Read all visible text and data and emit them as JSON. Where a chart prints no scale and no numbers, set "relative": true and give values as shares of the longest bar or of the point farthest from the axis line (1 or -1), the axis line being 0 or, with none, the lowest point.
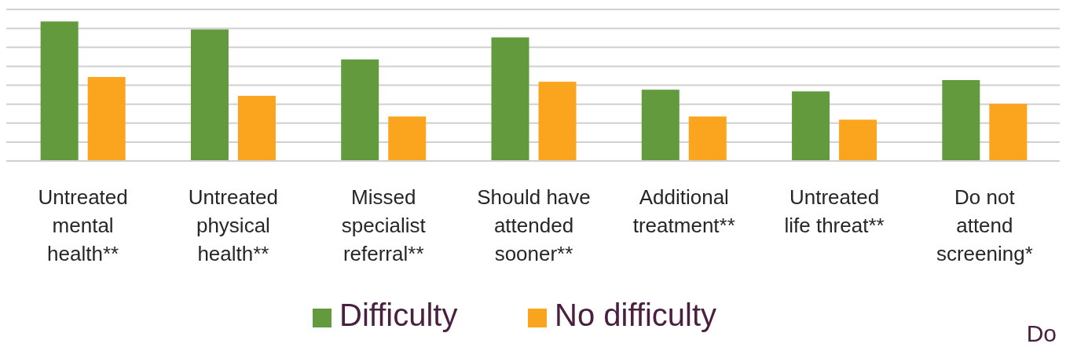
{
  "chart_data": {
    "type": "bar",
    "relative": true,
    "grid": true,
    "legend": "bottom",
    "categories": [
      "Untreated\nmental\nhealth**",
      "Untreated\nphysical\nhealth**",
      "Missed\nspecialist\nreferral**",
      "Should have\nattended\nsooner**",
      "Additional\ntreatment**",
      "Untreated\nlife threat**",
      "Do not\nattend\nscreening*"
    ],
    "series": [
      {
        "name": "Difficulty",
        "color": "#629a3d",
        "values": [
          1,
          0.943,
          0.728,
          0.886,
          0.511,
          0.499,
          0.58
        ]
      },
      {
        "name": "No difficulty",
        "color": "#fba51e",
        "values": [
          0.602,
          0.467,
          0.319,
          0.568,
          0.319,
          0.296,
          0.41
        ]
      }
    ],
    "annotations": [
      "Do"
    ]
  }
}
